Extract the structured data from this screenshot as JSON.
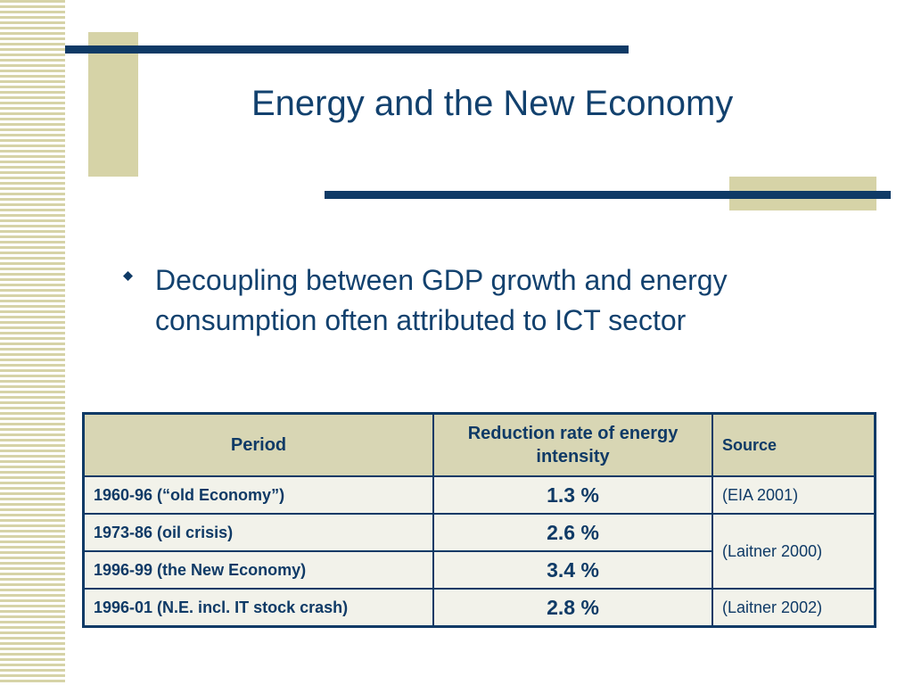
{
  "slide": {
    "title": "Energy and the New Economy",
    "bullet": "Decoupling between GDP growth and energy consumption often attributed to ICT sector"
  },
  "table": {
    "headers": {
      "period": "Period",
      "rate": "Reduction rate of energy intensity",
      "source": "Source"
    },
    "rows": [
      {
        "period": "1960-96 (“old Economy”)",
        "rate": "1.3 %",
        "source": "(EIA 2001)"
      },
      {
        "period": "1973-86 (oil crisis)",
        "rate": "2.6 %",
        "source": "(Laitner 2000)"
      },
      {
        "period": "1996-99 (the New Economy)",
        "rate": "3.4 %"
      },
      {
        "period": "1996-01 (N.E. incl. IT stock crash)",
        "rate": "2.8 %",
        "source": "(Laitner 2002)"
      }
    ]
  },
  "colors": {
    "navy": "#0f3a66",
    "title": "#12416e",
    "tan": "#d6d3a7",
    "header_bg": "#d8d6b4"
  },
  "icons": {
    "bullet": "diamond-icon"
  }
}
